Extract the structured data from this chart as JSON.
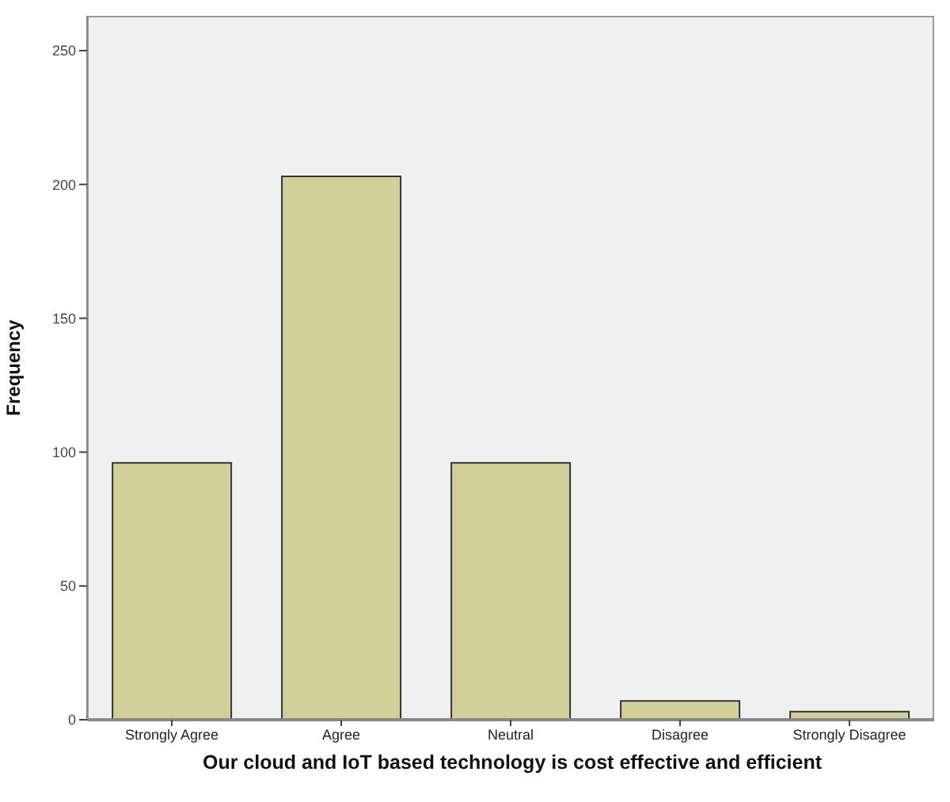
{
  "chart_data": {
    "type": "bar",
    "xlabel": "Our cloud and IoT based technology is cost effective and efficient",
    "ylabel": "Frequency",
    "categories": [
      "Strongly Agree",
      "Agree",
      "Neutral",
      "Disagree",
      "Strongly Disagree"
    ],
    "values": [
      96,
      203,
      96,
      7,
      3
    ],
    "color": "#d3cf98",
    "ylim": [
      0,
      263
    ],
    "yticks": [
      0,
      50,
      100,
      150,
      200,
      250
    ],
    "grid": false,
    "legend": false
  }
}
